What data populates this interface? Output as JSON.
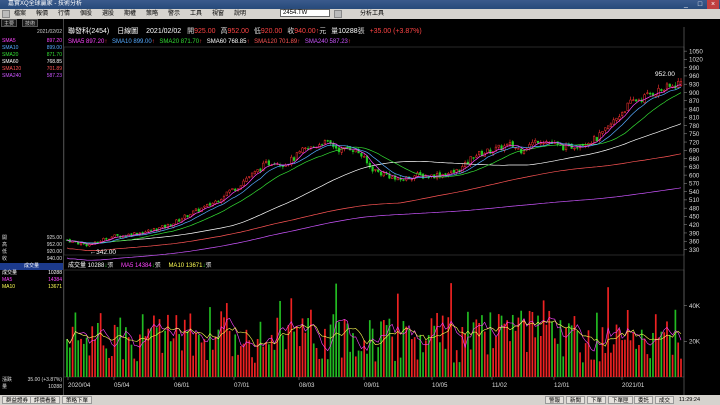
{
  "window": {
    "title": "嘉實XQ全球贏家 - 技術分析",
    "controls": [
      "_",
      "□",
      "×"
    ]
  },
  "menubar": {
    "items": [
      "檔案",
      "報價",
      "行情",
      "個股",
      "選股",
      "期權",
      "策略",
      "警示",
      "工具",
      "視窗",
      "說明"
    ],
    "stock_input": "2454.TW",
    "right_label": "分析工具"
  },
  "left_panel": {
    "tabs": [
      "主要",
      "技術"
    ],
    "date": "2021/02/02",
    "sma_rows": [
      {
        "label": "SMA5",
        "value": "897.20",
        "color": "#ff44ff"
      },
      {
        "label": "SMA10",
        "value": "899.00",
        "color": "#55aaff"
      },
      {
        "label": "SMA20",
        "value": "871.70",
        "color": "#33dd33"
      },
      {
        "label": "SMA60",
        "value": "768.85",
        "color": "#ffffff"
      },
      {
        "label": "SMA120",
        "value": "701.89",
        "color": "#ff5555"
      },
      {
        "label": "SMA240",
        "value": "587.23",
        "color": "#cc55ff"
      }
    ],
    "ohlc_rows": [
      {
        "label": "開",
        "value": "925.00"
      },
      {
        "label": "高",
        "value": "952.00"
      },
      {
        "label": "低",
        "value": "920.00"
      },
      {
        "label": "收",
        "value": "940.00"
      }
    ],
    "vol_title": "成交量",
    "vol_rows": [
      {
        "label": "成交量",
        "value": "10288",
        "color": "#ffffff"
      },
      {
        "label": "MA5",
        "value": "14384",
        "color": "#ff44ff"
      },
      {
        "label": "MA10",
        "value": "13671",
        "color": "#ffff55"
      }
    ],
    "bottom_rows": [
      {
        "label": "漲跌",
        "value": "35.00 (+3.87%)"
      },
      {
        "label": "量",
        "value": "10288"
      }
    ]
  },
  "chart_header": {
    "stock": "聯發科(2454)",
    "period": "日線圖",
    "date": "2021/02/02",
    "open_label": "開",
    "open": "925.00",
    "high_label": "高",
    "high": "952.00",
    "low_label": "低",
    "low": "920.00",
    "close_label": "收",
    "close": "940.00",
    "unit": "元",
    "vol_label": "量",
    "vol": "10288",
    "vol_unit": "張",
    "change": "+35.00 (+3.87%)"
  },
  "sma_header": [
    {
      "text": "SMA5 897.20",
      "color": "#ff44ff"
    },
    {
      "text": "SMA10 899.00",
      "color": "#55aaff"
    },
    {
      "text": "SMA20 871.70",
      "color": "#33dd33"
    },
    {
      "text": "SMA60 768.85",
      "color": "#ffffff"
    },
    {
      "text": "SMA120 701.89",
      "color": "#ff5555"
    },
    {
      "text": "SMA240 587.23",
      "color": "#cc55ff"
    }
  ],
  "vol_header": [
    {
      "text": "成交量 10288",
      "color": "#ffffff"
    },
    {
      "text": "MA5 14384",
      "color": "#ff44ff"
    },
    {
      "text": "MA10 13671",
      "color": "#ffff55"
    }
  ],
  "price_annotations": {
    "high": "952.00",
    "low": "342.00"
  },
  "chart_data": [
    {
      "type": "candlestick",
      "title": "聯發科(2454) 日線圖",
      "ylim": [
        310,
        1065
      ],
      "y_ticks": [
        330,
        360,
        390,
        420,
        450,
        480,
        510,
        540,
        570,
        600,
        630,
        660,
        690,
        720,
        750,
        780,
        810,
        840,
        870,
        900,
        930,
        960,
        990,
        1020,
        1050
      ],
      "x_ticks": [
        "2020/04",
        "05/04",
        "06/01",
        "07/01",
        "08/03",
        "09/01",
        "10/05",
        "11/02",
        "12/01",
        "2021/01"
      ],
      "close_path": [
        [
          0,
          365
        ],
        [
          5,
          355
        ],
        [
          10,
          348
        ],
        [
          15,
          352
        ],
        [
          20,
          370
        ],
        [
          25,
          378
        ],
        [
          30,
          380
        ],
        [
          35,
          388
        ],
        [
          40,
          392
        ],
        [
          45,
          400
        ],
        [
          50,
          410
        ],
        [
          55,
          420
        ],
        [
          60,
          440
        ],
        [
          65,
          460
        ],
        [
          70,
          475
        ],
        [
          75,
          490
        ],
        [
          80,
          510
        ],
        [
          85,
          540
        ],
        [
          90,
          555
        ],
        [
          95,
          590
        ],
        [
          100,
          610
        ],
        [
          105,
          640
        ],
        [
          110,
          650
        ],
        [
          115,
          640
        ],
        [
          120,
          660
        ],
        [
          125,
          690
        ],
        [
          130,
          700
        ],
        [
          135,
          720
        ],
        [
          140,
          710
        ],
        [
          145,
          690
        ],
        [
          150,
          700
        ],
        [
          155,
          680
        ],
        [
          160,
          630
        ],
        [
          165,
          610
        ],
        [
          170,
          600
        ],
        [
          175,
          580
        ],
        [
          180,
          590
        ],
        [
          185,
          600
        ],
        [
          190,
          595
        ],
        [
          195,
          600
        ],
        [
          200,
          605
        ],
        [
          205,
          610
        ],
        [
          210,
          630
        ],
        [
          215,
          670
        ],
        [
          220,
          680
        ],
        [
          225,
          690
        ],
        [
          230,
          700
        ],
        [
          235,
          710
        ],
        [
          240,
          690
        ],
        [
          245,
          710
        ],
        [
          250,
          730
        ],
        [
          255,
          720
        ],
        [
          260,
          705
        ],
        [
          265,
          700
        ],
        [
          270,
          710
        ],
        [
          275,
          720
        ],
        [
          280,
          730
        ],
        [
          285,
          760
        ],
        [
          290,
          800
        ],
        [
          295,
          840
        ],
        [
          300,
          870
        ],
        [
          305,
          880
        ],
        [
          310,
          900
        ],
        [
          315,
          910
        ],
        [
          320,
          920
        ],
        [
          325,
          940
        ]
      ],
      "volume": {
        "ylim": [
          0,
          60000
        ],
        "y_ticks": [
          20000,
          40000
        ],
        "y_tick_labels": [
          "20K",
          "40K"
        ]
      }
    }
  ],
  "status_bar": {
    "left": [
      "群益證券",
      "評價看盤",
      "策略下單"
    ],
    "right": [
      "警報",
      "新聞",
      "下單",
      "下單匣",
      "刪除",
      "委託",
      "成交",
      "閃電下單",
      "帳戶"
    ],
    "time": "11:29:24"
  }
}
